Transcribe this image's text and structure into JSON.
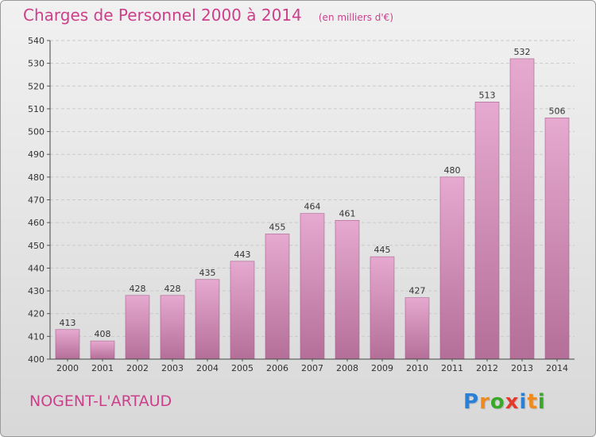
{
  "header": {
    "title": "Charges de Personnel 2000 à 2014",
    "subtitle": "(en milliers d'€)"
  },
  "footer": {
    "commune": "NOGENT-L'ARTAUD",
    "logo": {
      "letters": [
        "P",
        "r",
        "o",
        "x",
        "i",
        "t",
        "i"
      ],
      "colors": [
        "#2a7fd6",
        "#f08a1c",
        "#3aa82a",
        "#e43a2e",
        "#2a7fd6",
        "#f08a1c",
        "#3aa82a"
      ]
    }
  },
  "chart_data": {
    "type": "bar",
    "categories": [
      "2000",
      "2001",
      "2002",
      "2003",
      "2004",
      "2005",
      "2006",
      "2007",
      "2008",
      "2009",
      "2010",
      "2011",
      "2012",
      "2013",
      "2014"
    ],
    "values": [
      413,
      408,
      428,
      428,
      435,
      443,
      455,
      464,
      461,
      445,
      427,
      480,
      513,
      532,
      506
    ],
    "ylim": [
      400,
      540
    ],
    "yticks": [
      400,
      410,
      420,
      430,
      440,
      450,
      460,
      470,
      480,
      490,
      500,
      510,
      520,
      530,
      540
    ],
    "grid": true,
    "bar_color_top": "#e6a9cf",
    "bar_color_bottom": "#b46f98"
  }
}
